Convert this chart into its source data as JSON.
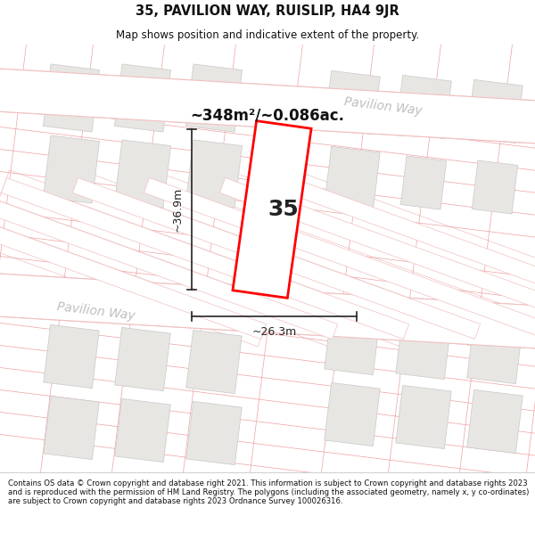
{
  "title": "35, PAVILION WAY, RUISLIP, HA4 9JR",
  "subtitle": "Map shows position and indicative extent of the property.",
  "area_text": "~348m²/~0.086ac.",
  "label_35": "35",
  "dim_width": "~26.3m",
  "dim_height": "~36.9m",
  "street_label_lower": "Pavilion Way",
  "street_label_upper": "Pavilion Way",
  "footer_text": "Contains OS data © Crown copyright and database right 2021. This information is subject to Crown copyright and database rights 2023 and is reproduced with the permission of HM Land Registry. The polygons (including the associated geometry, namely x, y co-ordinates) are subject to Crown copyright and database rights 2023 Ordnance Survey 100026316.",
  "map_bg": "#f7f6f4",
  "road_color": "#ffffff",
  "road_outline": "#f0c0c0",
  "parcel_line_color": "#f0c0c0",
  "building_color": "#e8e6e3",
  "building_outline": "#c8c8c8",
  "parcel_color": "red",
  "dim_color": "#222222",
  "street_text_color": "#c0bebe",
  "title_color": "#111111",
  "subtitle_color": "#111111"
}
